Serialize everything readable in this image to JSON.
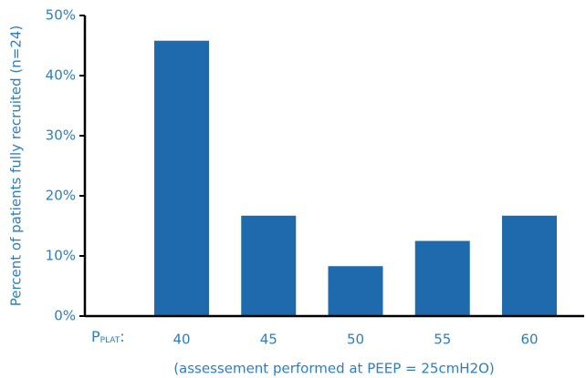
{
  "chart_data": {
    "type": "bar",
    "y_label": "Percent of patients fully recruited (n=24)",
    "x_label": "(assessement performed at PEEP = 25cmH2O)",
    "x_prefix": {
      "main": "P",
      "sub": "PLAT",
      "suffix": ":"
    },
    "categories": [
      "40",
      "45",
      "50",
      "55",
      "60"
    ],
    "values": [
      45.8,
      16.7,
      8.3,
      12.5,
      16.7
    ],
    "color": "#1f6aad",
    "ylim": [
      0,
      50
    ],
    "yticks": [
      {
        "value": 0,
        "label": "0%"
      },
      {
        "value": 10,
        "label": "10%"
      },
      {
        "value": 20,
        "label": "20%"
      },
      {
        "value": 30,
        "label": "30%"
      },
      {
        "value": 40,
        "label": "40%"
      },
      {
        "value": 50,
        "label": "50%"
      }
    ]
  }
}
